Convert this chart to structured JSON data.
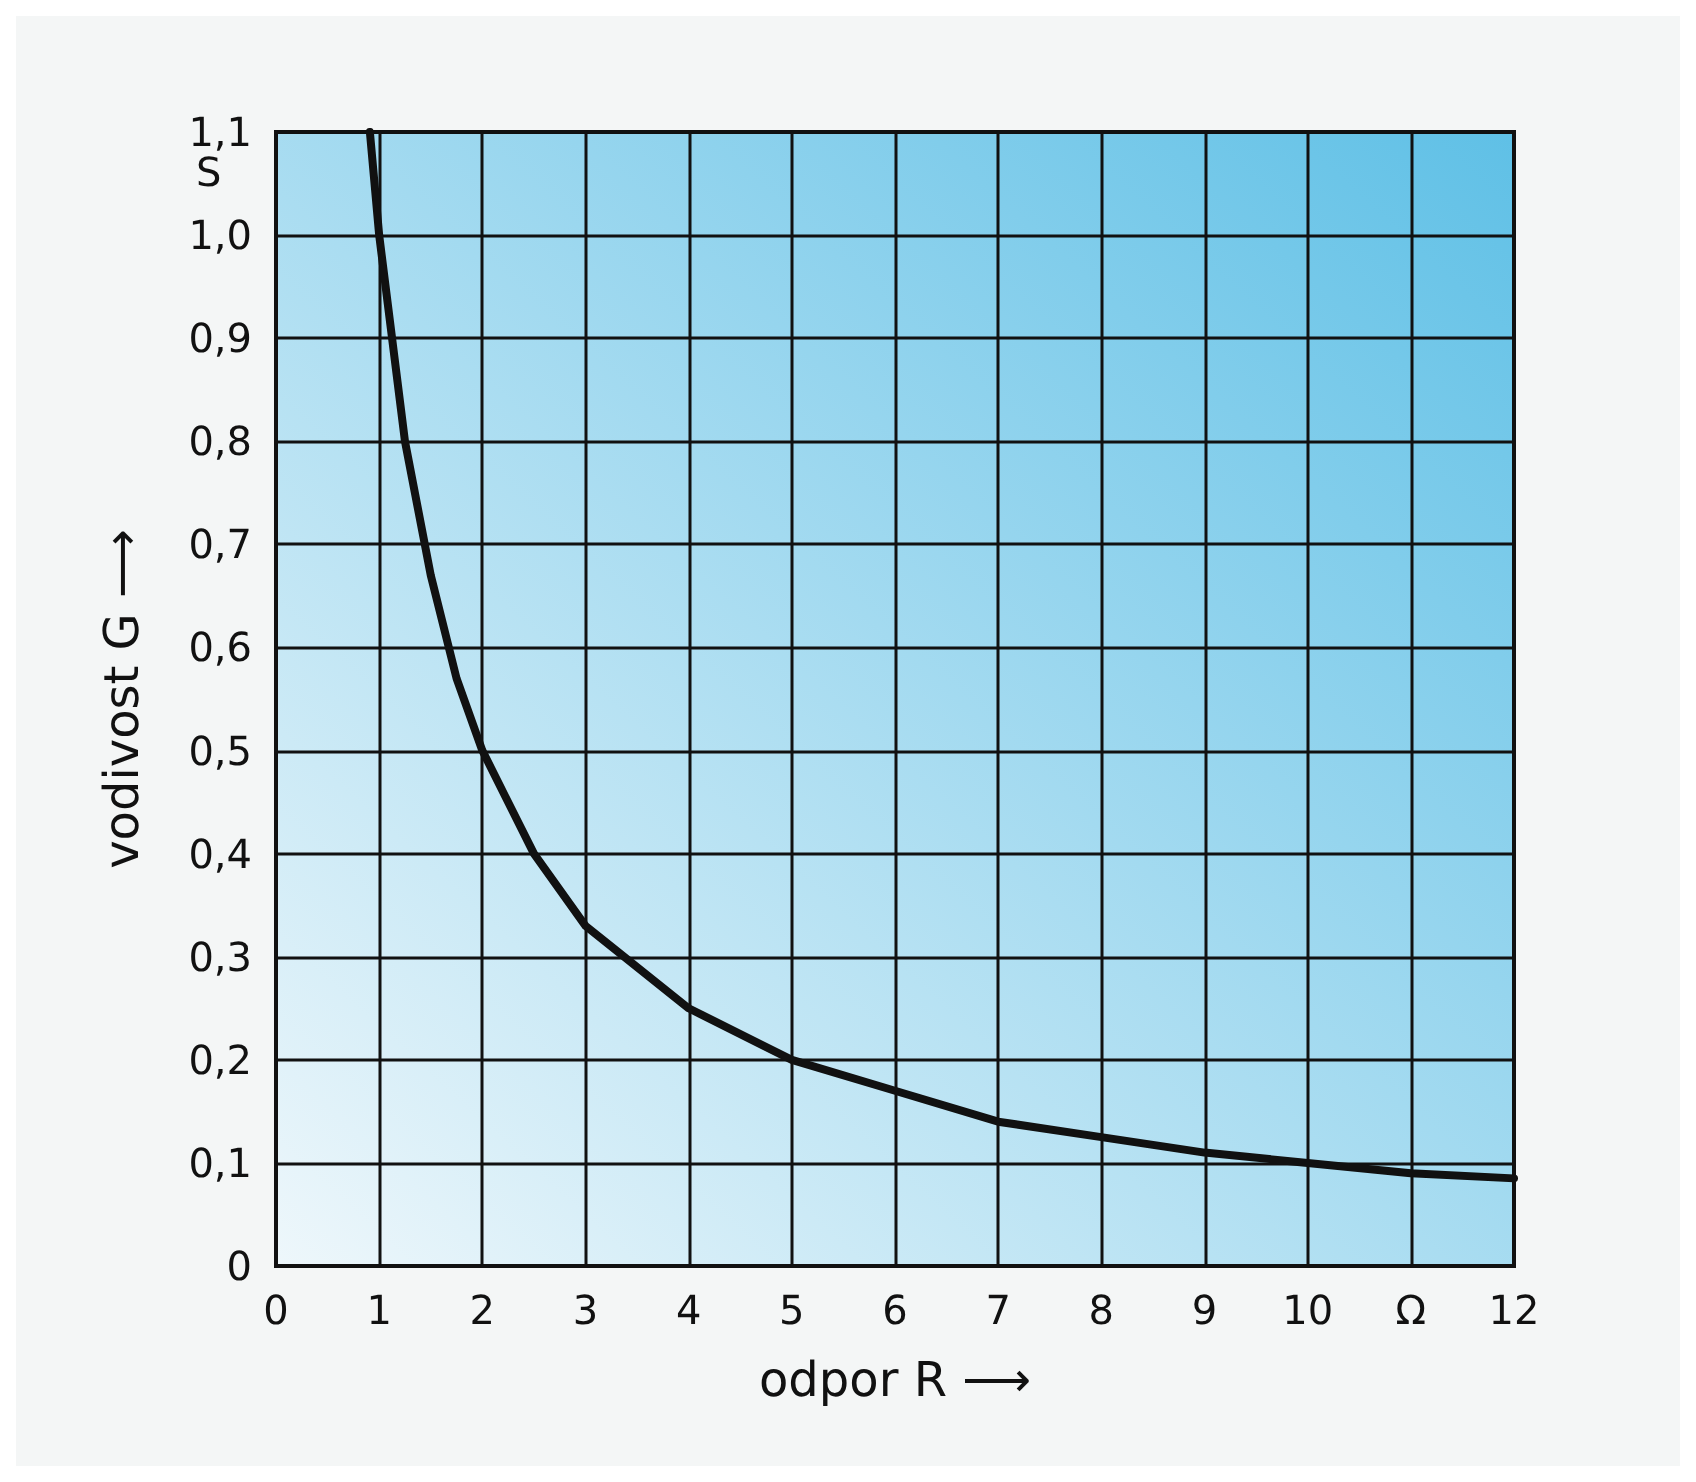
{
  "chart_data": {
    "type": "line",
    "xlabel": "odpor R ⟶",
    "ylabel": "vodivost G ⟶",
    "annotations": [
      "S"
    ],
    "x": [
      0.91,
      1,
      1.25,
      1.5,
      1.75,
      2,
      2.5,
      3,
      3.5,
      4,
      5,
      6,
      7,
      8,
      9,
      10,
      11,
      12
    ],
    "series": [
      {
        "color": "#111111",
        "values": [
          1.1,
          1.0,
          0.8,
          0.67,
          0.57,
          0.5,
          0.4,
          0.33,
          0.29,
          0.25,
          0.2,
          0.17,
          0.14,
          0.125,
          0.11,
          0.1,
          0.09,
          0.085
        ]
      }
    ],
    "xlim": [
      0,
      12
    ],
    "ylim": [
      0,
      1.1
    ],
    "xticks": [
      0,
      1,
      2,
      3,
      4,
      5,
      6,
      7,
      8,
      9,
      10,
      {
        "value": 11,
        "label": "Ω"
      },
      12
    ],
    "yticks": [
      0,
      {
        "value": 0.1,
        "label": "0,1"
      },
      {
        "value": 0.2,
        "label": "0,2"
      },
      {
        "value": 0.3,
        "label": "0,3"
      },
      {
        "value": 0.4,
        "label": "0,4"
      },
      {
        "value": 0.5,
        "label": "0,5"
      },
      {
        "value": 0.6,
        "label": "0,6"
      },
      {
        "value": 0.7,
        "label": "0,7"
      },
      {
        "value": 0.8,
        "label": "0,8"
      },
      {
        "value": 0.9,
        "label": "0,9"
      },
      {
        "value": 1.0,
        "label": "1,0"
      },
      {
        "value": 1.1,
        "label": "1,1"
      }
    ],
    "grid": true,
    "line_style": "solid"
  }
}
